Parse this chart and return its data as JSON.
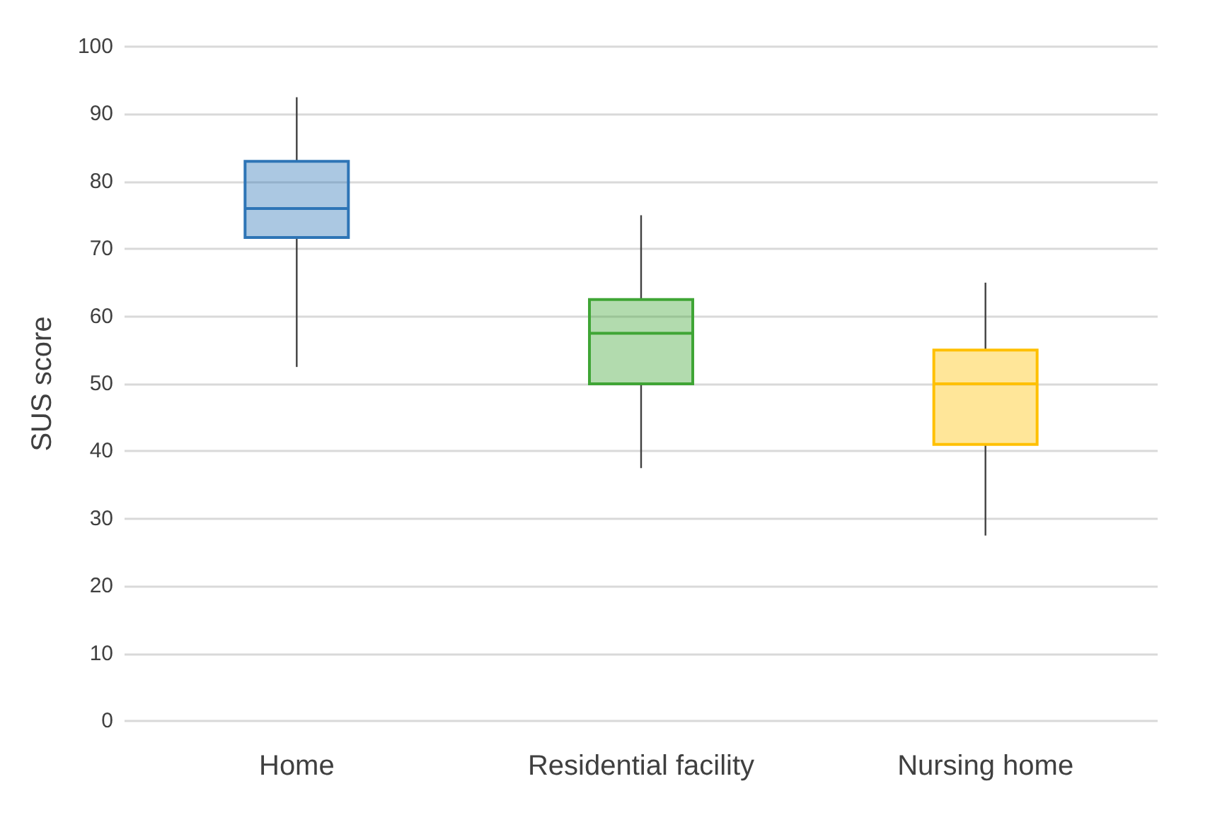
{
  "chart_data": {
    "type": "box",
    "ylabel": "SUS score",
    "categories": [
      "Home",
      "Residential facility",
      "Nursing home"
    ],
    "boxes": [
      {
        "low": 52.5,
        "q1": 71.7,
        "median": 76,
        "q3": 83,
        "high": 92.5
      },
      {
        "low": 37.5,
        "q1": 50,
        "median": 57.5,
        "q3": 62.5,
        "high": 75
      },
      {
        "low": 27.5,
        "q1": 41,
        "median": 50,
        "q3": 55,
        "high": 65
      }
    ],
    "colors": [
      "#2e75b6",
      "#3fa535",
      "#ffc000"
    ],
    "ylim": [
      0,
      100
    ],
    "yticks": [
      0,
      10,
      20,
      30,
      40,
      50,
      60,
      70,
      80,
      90,
      100
    ],
    "grid": "y"
  }
}
